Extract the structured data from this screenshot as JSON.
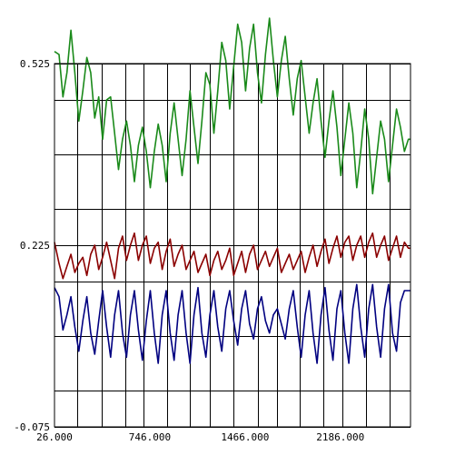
{
  "chart_data": {
    "type": "line",
    "xlim": [
      26,
      2716
    ],
    "ylim": [
      -0.075,
      0.525
    ],
    "x_ticks": [
      {
        "value": 26,
        "label": "26.000"
      },
      {
        "value": 746,
        "label": "746.000"
      },
      {
        "value": 1466,
        "label": "1466.000"
      },
      {
        "value": 2186,
        "label": "2186.000"
      }
    ],
    "y_ticks": [
      {
        "value": 0.525,
        "label": "0.525"
      },
      {
        "value": 0.225,
        "label": "0.225"
      },
      {
        "value": -0.075,
        "label": "-0.075"
      }
    ],
    "grid": true,
    "grid_x_values": [
      200,
      380,
      560,
      700,
      880,
      1050,
      1200,
      1380,
      1560,
      1710,
      1880,
      2060,
      2200,
      2380,
      2560
    ],
    "grid_y_values": [
      0.525,
      0.465,
      0.375,
      0.285,
      0.225,
      0.165,
      0.075,
      -0.015,
      -0.075
    ],
    "series": [
      {
        "color": "#1a8a1a",
        "x": [
          26,
          60,
          90,
          120,
          150,
          180,
          210,
          240,
          270,
          300,
          330,
          360,
          390,
          420,
          450,
          480,
          510,
          540,
          570,
          600,
          630,
          660,
          690,
          720,
          750,
          780,
          810,
          840,
          870,
          900,
          930,
          960,
          990,
          1020,
          1050,
          1080,
          1110,
          1140,
          1170,
          1200,
          1230,
          1260,
          1290,
          1320,
          1350,
          1380,
          1410,
          1440,
          1470,
          1500,
          1530,
          1560,
          1590,
          1620,
          1650,
          1680,
          1710,
          1740,
          1770,
          1800,
          1830,
          1860,
          1890,
          1920,
          1950,
          1980,
          2010,
          2040,
          2070,
          2100,
          2130,
          2160,
          2190,
          2220,
          2250,
          2280,
          2310,
          2340,
          2370,
          2400,
          2430,
          2460,
          2490,
          2520,
          2550,
          2580,
          2610,
          2640,
          2670,
          2700,
          2716
        ],
        "values": [
          0.545,
          0.54,
          0.47,
          0.51,
          0.58,
          0.51,
          0.43,
          0.48,
          0.535,
          0.51,
          0.435,
          0.47,
          0.4,
          0.465,
          0.47,
          0.41,
          0.35,
          0.4,
          0.43,
          0.39,
          0.33,
          0.39,
          0.42,
          0.38,
          0.32,
          0.38,
          0.425,
          0.39,
          0.33,
          0.41,
          0.46,
          0.4,
          0.34,
          0.4,
          0.48,
          0.42,
          0.36,
          0.43,
          0.51,
          0.49,
          0.41,
          0.48,
          0.56,
          0.53,
          0.45,
          0.52,
          0.59,
          0.56,
          0.48,
          0.55,
          0.59,
          0.51,
          0.46,
          0.54,
          0.6,
          0.53,
          0.47,
          0.53,
          0.57,
          0.5,
          0.44,
          0.5,
          0.53,
          0.47,
          0.41,
          0.46,
          0.5,
          0.43,
          0.37,
          0.43,
          0.48,
          0.42,
          0.34,
          0.4,
          0.46,
          0.41,
          0.32,
          0.38,
          0.45,
          0.4,
          0.31,
          0.37,
          0.43,
          0.4,
          0.33,
          0.39,
          0.45,
          0.42,
          0.38,
          0.4,
          0.4
        ]
      },
      {
        "color": "#8b0000",
        "x": [
          26,
          60,
          90,
          120,
          150,
          180,
          210,
          240,
          270,
          300,
          330,
          360,
          390,
          420,
          450,
          480,
          510,
          540,
          570,
          600,
          630,
          660,
          690,
          720,
          750,
          780,
          810,
          840,
          870,
          900,
          930,
          960,
          990,
          1020,
          1050,
          1080,
          1110,
          1140,
          1170,
          1200,
          1230,
          1260,
          1290,
          1320,
          1350,
          1380,
          1410,
          1440,
          1470,
          1500,
          1530,
          1560,
          1590,
          1620,
          1650,
          1680,
          1710,
          1740,
          1770,
          1800,
          1830,
          1860,
          1890,
          1920,
          1950,
          1980,
          2010,
          2040,
          2070,
          2100,
          2130,
          2160,
          2190,
          2220,
          2250,
          2280,
          2310,
          2340,
          2370,
          2400,
          2430,
          2460,
          2490,
          2520,
          2550,
          2580,
          2610,
          2640,
          2670,
          2700,
          2716
        ],
        "values": [
          0.23,
          0.195,
          0.17,
          0.19,
          0.21,
          0.18,
          0.195,
          0.205,
          0.175,
          0.21,
          0.225,
          0.185,
          0.205,
          0.23,
          0.2,
          0.17,
          0.22,
          0.24,
          0.2,
          0.225,
          0.245,
          0.2,
          0.225,
          0.24,
          0.195,
          0.22,
          0.23,
          0.185,
          0.215,
          0.235,
          0.19,
          0.21,
          0.225,
          0.185,
          0.2,
          0.215,
          0.18,
          0.195,
          0.21,
          0.175,
          0.2,
          0.215,
          0.185,
          0.2,
          0.22,
          0.175,
          0.195,
          0.215,
          0.18,
          0.21,
          0.225,
          0.185,
          0.2,
          0.215,
          0.19,
          0.205,
          0.22,
          0.18,
          0.195,
          0.21,
          0.185,
          0.2,
          0.215,
          0.18,
          0.205,
          0.225,
          0.19,
          0.215,
          0.235,
          0.195,
          0.22,
          0.24,
          0.205,
          0.23,
          0.24,
          0.2,
          0.225,
          0.24,
          0.205,
          0.23,
          0.245,
          0.205,
          0.225,
          0.24,
          0.2,
          0.22,
          0.24,
          0.205,
          0.23,
          0.22,
          0.22
        ]
      },
      {
        "color": "#000080",
        "x": [
          26,
          60,
          90,
          120,
          150,
          180,
          210,
          240,
          270,
          300,
          330,
          360,
          390,
          420,
          450,
          480,
          510,
          540,
          570,
          600,
          630,
          660,
          690,
          720,
          750,
          780,
          810,
          840,
          870,
          900,
          930,
          960,
          990,
          1020,
          1050,
          1080,
          1110,
          1140,
          1170,
          1200,
          1230,
          1260,
          1290,
          1320,
          1350,
          1380,
          1410,
          1440,
          1470,
          1500,
          1530,
          1560,
          1590,
          1620,
          1650,
          1680,
          1710,
          1740,
          1770,
          1800,
          1830,
          1860,
          1890,
          1920,
          1950,
          1980,
          2010,
          2040,
          2070,
          2100,
          2130,
          2160,
          2190,
          2220,
          2250,
          2280,
          2310,
          2340,
          2370,
          2400,
          2430,
          2460,
          2490,
          2520,
          2550,
          2580,
          2610,
          2640,
          2670,
          2700,
          2716
        ],
        "values": [
          0.155,
          0.14,
          0.085,
          0.11,
          0.14,
          0.09,
          0.05,
          0.1,
          0.14,
          0.08,
          0.045,
          0.1,
          0.15,
          0.09,
          0.04,
          0.11,
          0.15,
          0.08,
          0.04,
          0.11,
          0.15,
          0.085,
          0.035,
          0.1,
          0.15,
          0.08,
          0.03,
          0.11,
          0.15,
          0.08,
          0.035,
          0.11,
          0.15,
          0.08,
          0.03,
          0.11,
          0.155,
          0.08,
          0.04,
          0.11,
          0.15,
          0.09,
          0.05,
          0.12,
          0.15,
          0.1,
          0.06,
          0.12,
          0.15,
          0.095,
          0.07,
          0.12,
          0.14,
          0.1,
          0.08,
          0.11,
          0.12,
          0.095,
          0.07,
          0.12,
          0.15,
          0.09,
          0.04,
          0.11,
          0.15,
          0.08,
          0.03,
          0.11,
          0.155,
          0.085,
          0.035,
          0.12,
          0.15,
          0.08,
          0.03,
          0.12,
          0.16,
          0.09,
          0.04,
          0.12,
          0.16,
          0.09,
          0.04,
          0.12,
          0.16,
          0.08,
          0.05,
          0.13,
          0.15,
          0.15,
          0.15
        ]
      }
    ]
  }
}
